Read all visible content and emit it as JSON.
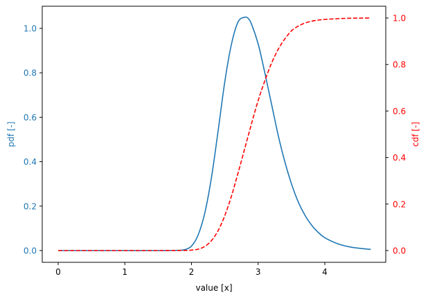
{
  "chart_data": {
    "type": "line",
    "title": "",
    "xlabel": "value [x]",
    "ylabel": "pdf [-]",
    "ylabel_right": "cdf [-]",
    "xlim": [
      -0.234,
      4.92
    ],
    "ylim": [
      -0.052,
      1.098
    ],
    "ylim_right": [
      -0.05,
      1.05
    ],
    "x_ticks": [
      0,
      1,
      2,
      3,
      4
    ],
    "x_tick_labels": [
      "0",
      "1",
      "2",
      "3",
      "4"
    ],
    "y_ticks": [
      0.0,
      0.2,
      0.4,
      0.6,
      0.8,
      1.0
    ],
    "y_tick_labels": [
      "0.0",
      "0.2",
      "0.4",
      "0.6",
      "0.8",
      "1.0"
    ],
    "y_right_ticks": [
      0.0,
      0.2,
      0.4,
      0.6,
      0.8,
      1.0
    ],
    "y_right_tick_labels": [
      "0.0",
      "0.2",
      "0.4",
      "0.6",
      "0.8",
      "1.0"
    ],
    "grid": false,
    "legend": "none",
    "colors": {
      "pdf": "#1f77b4",
      "cdf": "#ff0000",
      "axis": "#000000"
    },
    "series": [
      {
        "name": "pdf",
        "axis": "left",
        "style": "solid",
        "x": [
          0,
          0.5,
          1.0,
          1.5,
          1.8,
          1.9,
          2.0,
          2.1,
          2.2,
          2.3,
          2.4,
          2.5,
          2.6,
          2.7,
          2.8,
          2.85,
          2.9,
          3.0,
          3.1,
          3.2,
          3.3,
          3.4,
          3.5,
          3.6,
          3.7,
          3.8,
          3.9,
          4.0,
          4.2,
          4.4,
          4.69
        ],
        "values": [
          0,
          0,
          0,
          0,
          0.001,
          0.004,
          0.02,
          0.07,
          0.17,
          0.33,
          0.54,
          0.76,
          0.93,
          1.03,
          1.05,
          1.045,
          1.02,
          0.93,
          0.8,
          0.66,
          0.52,
          0.4,
          0.3,
          0.22,
          0.16,
          0.115,
          0.082,
          0.058,
          0.03,
          0.015,
          0.005
        ]
      },
      {
        "name": "cdf",
        "axis": "right",
        "style": "dashed",
        "x": [
          0,
          0.5,
          1.0,
          1.5,
          1.9,
          2.0,
          2.1,
          2.2,
          2.3,
          2.4,
          2.5,
          2.6,
          2.7,
          2.8,
          2.9,
          3.0,
          3.1,
          3.2,
          3.3,
          3.4,
          3.5,
          3.6,
          3.7,
          3.8,
          3.9,
          4.0,
          4.2,
          4.4,
          4.69
        ],
        "values": [
          0,
          0,
          0,
          0,
          0.0005,
          0.002,
          0.006,
          0.018,
          0.043,
          0.086,
          0.15,
          0.235,
          0.335,
          0.44,
          0.545,
          0.645,
          0.73,
          0.805,
          0.865,
          0.91,
          0.945,
          0.965,
          0.978,
          0.986,
          0.991,
          0.994,
          0.997,
          0.999,
          1.0
        ]
      }
    ]
  }
}
